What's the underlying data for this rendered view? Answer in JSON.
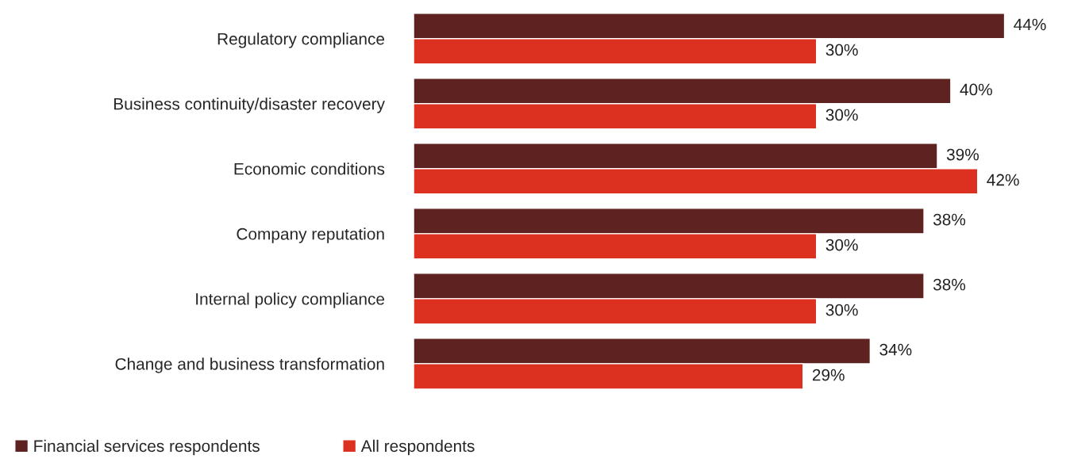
{
  "chart_data": {
    "type": "bar",
    "orientation": "horizontal",
    "categories": [
      "Regulatory compliance",
      "Business continuity/disaster recovery",
      "Economic conditions",
      "Company reputation",
      "Internal policy compliance",
      "Change and business transformation"
    ],
    "series": [
      {
        "name": "Financial services respondents",
        "color": "#5e2320",
        "values": [
          44,
          40,
          39,
          38,
          38,
          34
        ],
        "value_labels": [
          "44%",
          "40%",
          "39%",
          "38%",
          "38%",
          "34%"
        ]
      },
      {
        "name": "All respondents",
        "color": "#dc3121",
        "values": [
          30,
          30,
          42,
          30,
          30,
          29
        ],
        "value_labels": [
          "30%",
          "30%",
          "42%",
          "30%",
          "30%",
          "29%"
        ]
      }
    ],
    "legend": "bottom left",
    "grid": false
  }
}
